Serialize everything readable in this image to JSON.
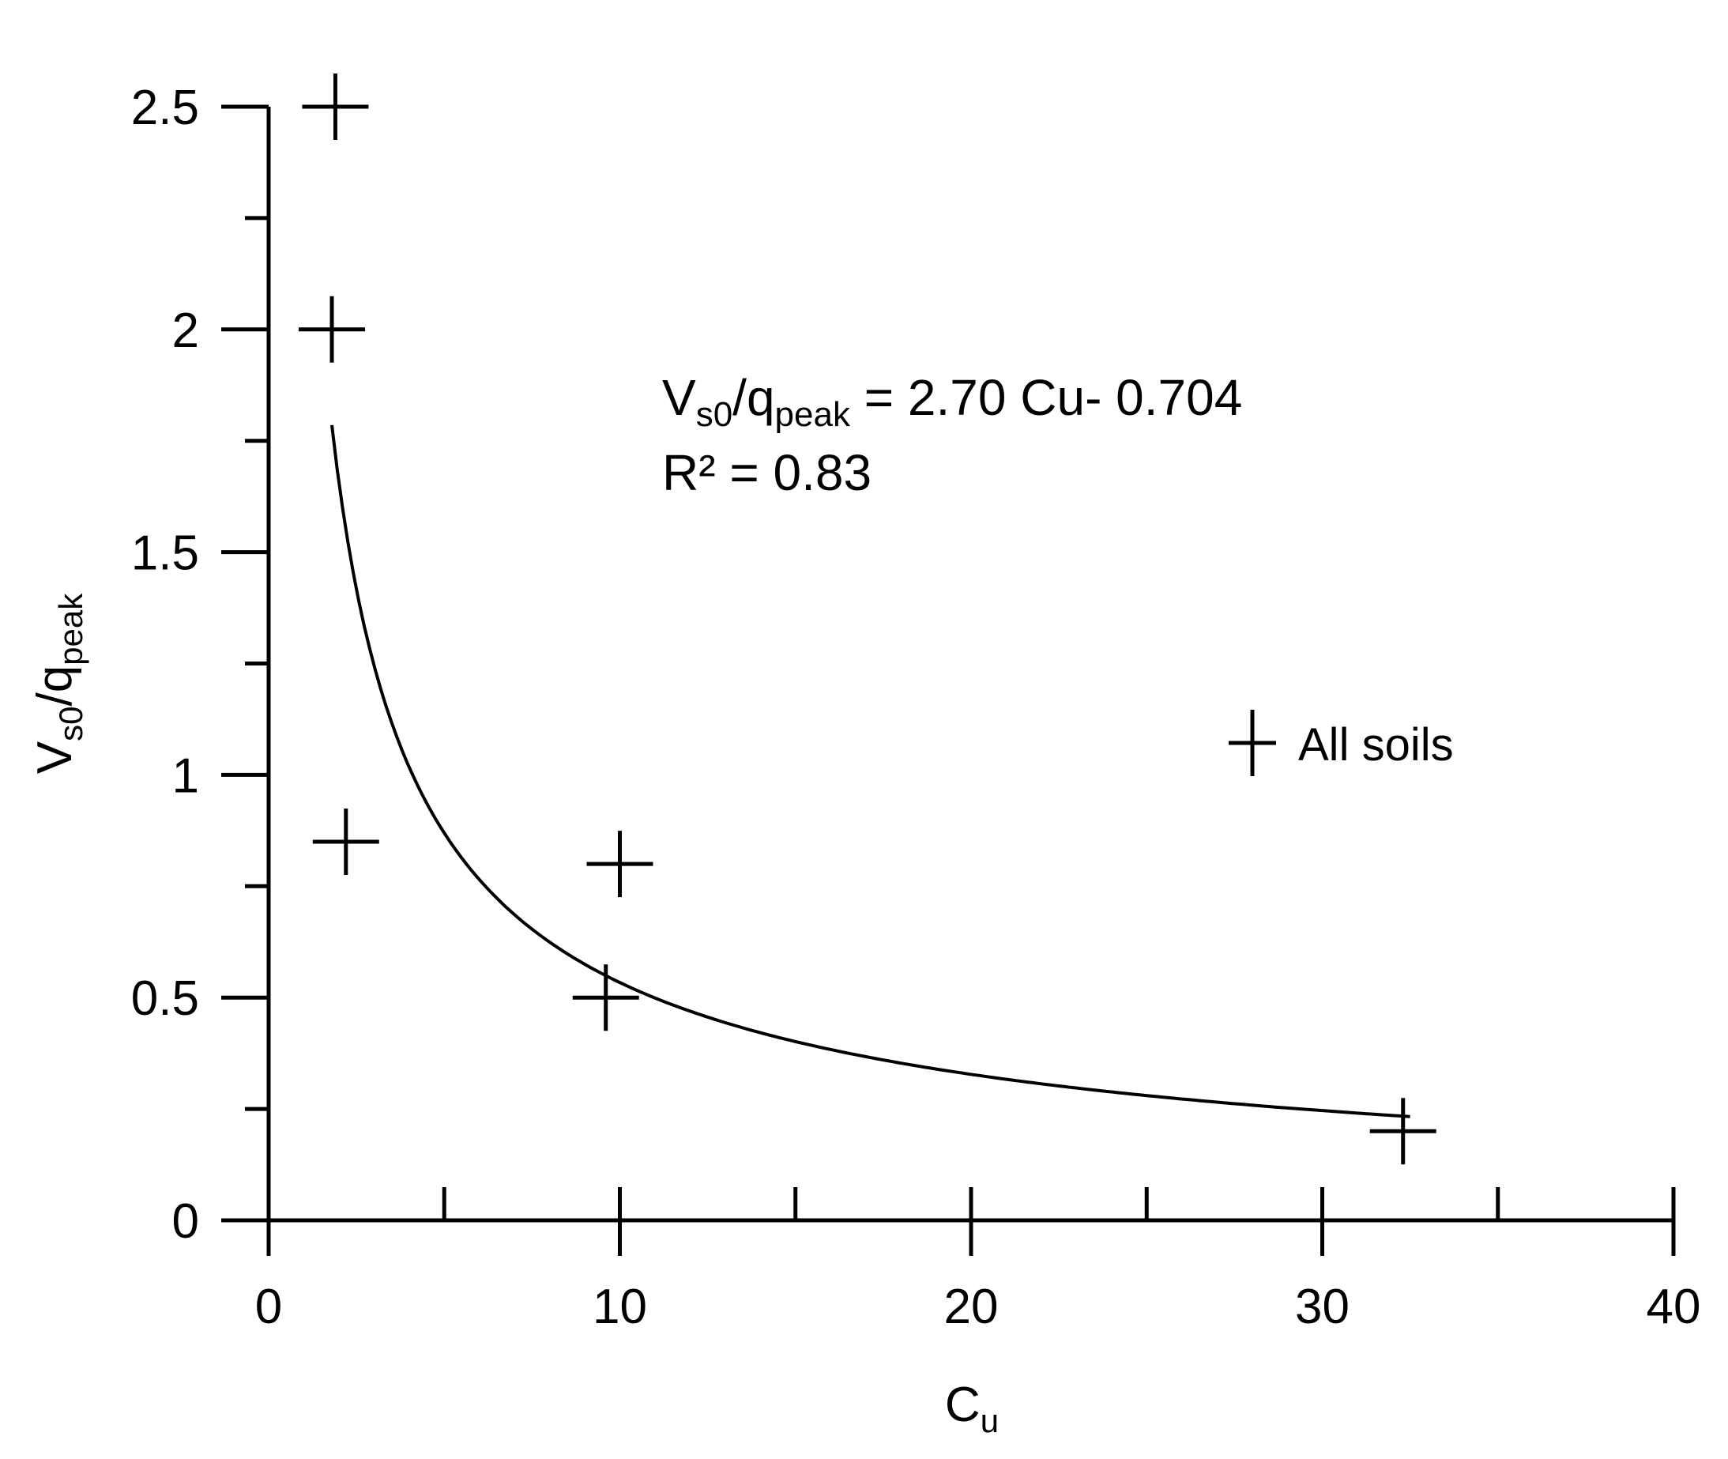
{
  "chart_data": {
    "type": "scatter",
    "x_axis": {
      "label_base": "C",
      "label_sub": "u",
      "range": [
        0,
        40
      ],
      "major_ticks": [
        0,
        10,
        20,
        30,
        40
      ],
      "major_tick_labels": [
        "0",
        "10",
        "20",
        "30",
        "40"
      ],
      "minor_ticks": [
        5,
        15,
        25,
        35
      ]
    },
    "y_axis": {
      "label_base": "V",
      "label_sub1": "s0",
      "label_mid": "/q",
      "label_sub2": "peak",
      "range": [
        0,
        2.5
      ],
      "major_ticks": [
        0,
        0.5,
        1,
        1.5,
        2,
        2.5
      ],
      "major_tick_labels": [
        "0",
        "0.5",
        "1",
        "1.5",
        "2",
        "2.5"
      ],
      "minor_ticks": [
        0.25,
        0.75,
        1.25,
        1.75,
        2.25
      ]
    },
    "series": [
      {
        "name": "All soils",
        "marker": "plus",
        "points": [
          {
            "x": 1.9,
            "y": 2.5
          },
          {
            "x": 1.8,
            "y": 2.0
          },
          {
            "x": 2.2,
            "y": 0.85
          },
          {
            "x": 10.0,
            "y": 0.8
          },
          {
            "x": 9.6,
            "y": 0.5
          },
          {
            "x": 32.3,
            "y": 0.2
          }
        ]
      }
    ],
    "fit": {
      "coefficient": 2.7,
      "exponent": -0.704,
      "x_range": [
        1.8,
        32.5
      ]
    },
    "annotation": {
      "line1_base": "V",
      "line1_sub1": "s0",
      "line1_mid": "/q",
      "line1_sub2": "peak",
      "line1_rest": " = 2.70 Cu- 0.704",
      "line2": "R² = 0.83"
    },
    "legend": {
      "label": "All soils",
      "placement": "right"
    },
    "grid": false
  }
}
